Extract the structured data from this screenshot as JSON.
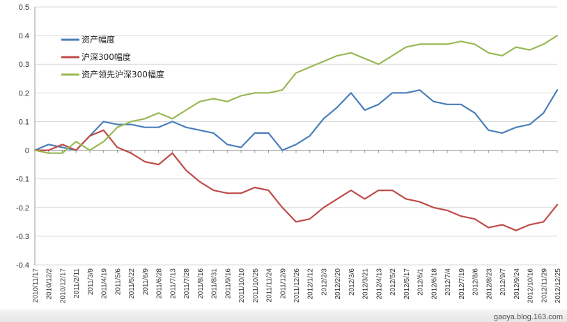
{
  "chart_data": {
    "type": "line",
    "ylim": [
      -0.4,
      0.5
    ],
    "y_ticks": [
      0.5,
      0.4,
      0.3,
      0.2,
      0.1,
      0,
      -0.1,
      -0.2,
      -0.3,
      -0.4
    ],
    "y_tick_labels": [
      "0.5",
      "0.4",
      "0.3",
      "0.2",
      "0.1",
      "0",
      "-0.1",
      "-0.2",
      "-0.3",
      "-0.4"
    ],
    "grid": true,
    "legend_position": "top-left",
    "x": [
      "2010/11/17",
      "2010/12/2",
      "2010/12/17",
      "2011/2/11",
      "2011/3/9",
      "2011/4/19",
      "2011/5/6",
      "2011/5/22",
      "2011/6/9",
      "2011/6/28",
      "2011/7/13",
      "2011/7/28",
      "2011/8/16",
      "2011/8/31",
      "2011/9/16",
      "2011/10/10",
      "2011/10/25",
      "2011/11/24",
      "2011/12/9",
      "2011/12/26",
      "2012/1/12",
      "2012/2/3",
      "2012/2/20",
      "2012/3/6",
      "2012/3/21",
      "2012/4/13",
      "2012/5/2",
      "2012/5/17",
      "2012/6/1",
      "2012/6/18",
      "2012/7/4",
      "2012/7/19",
      "2012/8/6",
      "2012/8/23",
      "2012/9/7",
      "2012/9/24",
      "2012/10/16",
      "2012/11/29",
      "2012/12/25"
    ],
    "series": [
      {
        "name": "资产幅度",
        "color": "#4a7ebb",
        "values": [
          0.0,
          0.02,
          0.01,
          0.0,
          0.05,
          0.1,
          0.09,
          0.09,
          0.08,
          0.08,
          0.1,
          0.08,
          0.07,
          0.06,
          0.02,
          0.01,
          0.06,
          0.06,
          0.0,
          0.02,
          0.05,
          0.11,
          0.15,
          0.2,
          0.14,
          0.16,
          0.2,
          0.2,
          0.21,
          0.17,
          0.16,
          0.16,
          0.13,
          0.07,
          0.06,
          0.08,
          0.09,
          0.13,
          0.21
        ]
      },
      {
        "name": "沪深300幅度",
        "color": "#be4b48",
        "values": [
          0.0,
          0.0,
          0.02,
          0.0,
          0.05,
          0.07,
          0.01,
          -0.01,
          -0.04,
          -0.05,
          -0.01,
          -0.07,
          -0.11,
          -0.14,
          -0.15,
          -0.15,
          -0.13,
          -0.14,
          -0.2,
          -0.25,
          -0.24,
          -0.2,
          -0.17,
          -0.14,
          -0.17,
          -0.14,
          -0.14,
          -0.17,
          -0.18,
          -0.2,
          -0.21,
          -0.23,
          -0.24,
          -0.27,
          -0.26,
          -0.28,
          -0.26,
          -0.25,
          -0.19
        ]
      },
      {
        "name": "资产领先沪深300幅度",
        "color": "#98b954",
        "values": [
          0.0,
          -0.01,
          -0.01,
          0.03,
          0.0,
          0.03,
          0.08,
          0.1,
          0.11,
          0.13,
          0.11,
          0.14,
          0.17,
          0.18,
          0.17,
          0.19,
          0.2,
          0.2,
          0.21,
          0.27,
          0.29,
          0.31,
          0.33,
          0.34,
          0.32,
          0.3,
          0.33,
          0.36,
          0.37,
          0.37,
          0.37,
          0.38,
          0.37,
          0.34,
          0.33,
          0.36,
          0.35,
          0.37,
          0.4
        ]
      }
    ]
  },
  "watermark": "gaoya.blog.163.com"
}
